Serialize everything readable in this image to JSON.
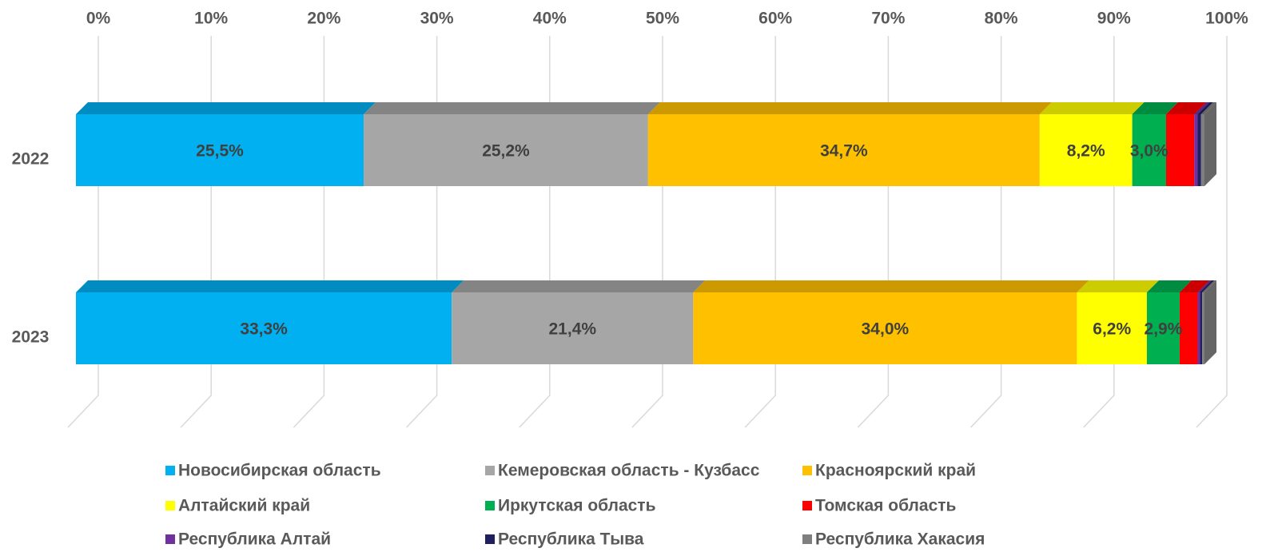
{
  "chart_data": {
    "type": "stacked-bar-horizontal-percent",
    "categories": [
      "2022",
      "2023"
    ],
    "xlim": [
      0,
      100
    ],
    "xticks": [
      {
        "value": 0,
        "label": "0%"
      },
      {
        "value": 10,
        "label": "10%"
      },
      {
        "value": 20,
        "label": "20%"
      },
      {
        "value": 30,
        "label": "30%"
      },
      {
        "value": 40,
        "label": "40%"
      },
      {
        "value": 50,
        "label": "50%"
      },
      {
        "value": 60,
        "label": "60%"
      },
      {
        "value": 70,
        "label": "70%"
      },
      {
        "value": 80,
        "label": "80%"
      },
      {
        "value": 90,
        "label": "90%"
      },
      {
        "value": 100,
        "label": "100%"
      }
    ],
    "grid": true,
    "legend": "bottom",
    "series": [
      {
        "name": "Новосибирская область",
        "color": "#00b0f0",
        "values": [
          25.5,
          33.3
        ],
        "value_labels": [
          "25,5%",
          "33,3%"
        ]
      },
      {
        "name": "Кемеровская область - Кузбасс",
        "color": "#a6a6a6",
        "values": [
          25.2,
          21.4
        ],
        "value_labels": [
          "25,2%",
          "21,4%"
        ]
      },
      {
        "name": "Красноярский край",
        "color": "#ffc000",
        "values": [
          34.7,
          34.0
        ],
        "value_labels": [
          "34,7%",
          "34,0%"
        ]
      },
      {
        "name": "Алтайский край",
        "color": "#ffff00",
        "values": [
          8.2,
          6.2
        ],
        "value_labels": [
          "8,2%",
          "6,2%"
        ]
      },
      {
        "name": "Иркутская область",
        "color": "#00b050",
        "values": [
          3.0,
          2.9
        ],
        "value_labels": [
          "3,0%",
          "2,9%"
        ]
      },
      {
        "name": "Томская область",
        "color": "#ff0000",
        "values": [
          2.5,
          1.6
        ]
      },
      {
        "name": "Республика Алтай",
        "color": "#7030a0",
        "values": [
          0.3,
          0.2
        ]
      },
      {
        "name": "Республика Тыва",
        "color": "#1f1f5f",
        "values": [
          0.3,
          0.2
        ]
      },
      {
        "name": "Республика Хакасия",
        "color": "#7f7f7f",
        "values": [
          0.3,
          0.2
        ]
      }
    ]
  }
}
